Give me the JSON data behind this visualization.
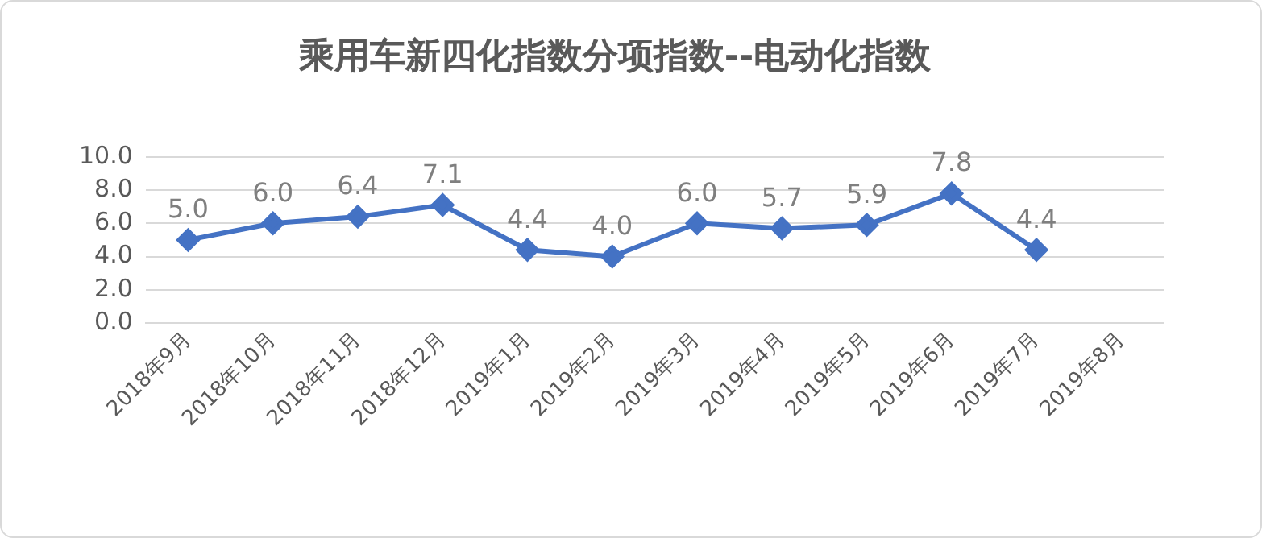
{
  "chart_data": {
    "type": "line",
    "title": "乘用车新四化指数分项指数--电动化指数",
    "categories": [
      "2018年9月",
      "2018年10月",
      "2018年11月",
      "2018年12月",
      "2019年1月",
      "2019年2月",
      "2019年3月",
      "2019年4月",
      "2019年5月",
      "2019年6月",
      "2019年7月",
      "2019年8月"
    ],
    "series": [
      {
        "color": "#4472c4",
        "values": [
          5.0,
          6.0,
          6.4,
          7.1,
          4.4,
          4.0,
          6.0,
          5.7,
          5.9,
          7.8,
          4.4,
          null
        ],
        "value_labels": [
          "5.0",
          "6.0",
          "6.4",
          "7.1",
          "4.4",
          "4.0",
          "6.0",
          "5.7",
          "5.9",
          "7.8",
          "4.4",
          null
        ]
      }
    ],
    "ylim": [
      0,
      10
    ],
    "yticks": [
      {
        "value": 0,
        "label": "0.0"
      },
      {
        "value": 2,
        "label": "2.0"
      },
      {
        "value": 4,
        "label": "4.0"
      },
      {
        "value": 6,
        "label": "6.0"
      },
      {
        "value": 8,
        "label": "8.0"
      },
      {
        "value": 10,
        "label": "10.0"
      }
    ],
    "grid": "y",
    "legend": false,
    "marker": "diamond",
    "line_style": "solid"
  }
}
